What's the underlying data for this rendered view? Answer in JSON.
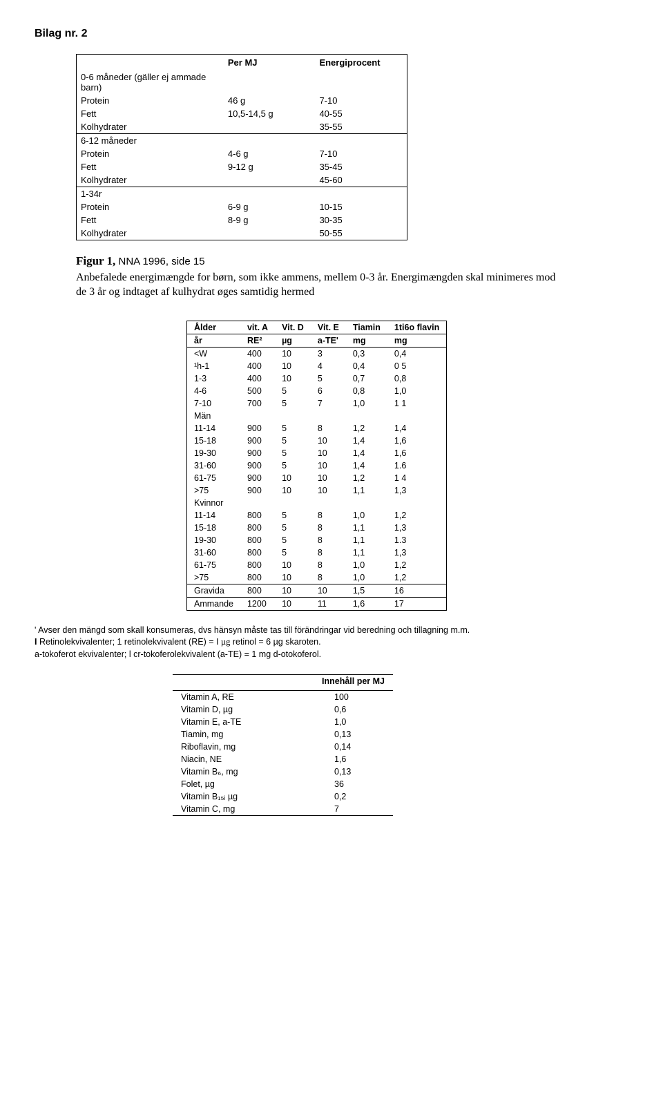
{
  "title": "Bilag nr. 2",
  "table1": {
    "headers": [
      "",
      "Per MJ",
      "Energiprocent"
    ],
    "groups": [
      {
        "rows": [
          [
            "0-6 måneder (gäller ej ammade barn)",
            "",
            ""
          ],
          [
            "Protein",
            "46 g",
            "7-10"
          ],
          [
            "Fett",
            "10,5-14,5 g",
            "40-55"
          ],
          [
            "Kolhydrater",
            "",
            "35-55"
          ]
        ]
      },
      {
        "rows": [
          [
            "6-12 måneder",
            "",
            ""
          ],
          [
            "Protein",
            "4-6 g",
            "7-10"
          ],
          [
            "Fett",
            "9-12 g",
            "35-45"
          ],
          [
            "Kolhydrater",
            "",
            "45-60"
          ]
        ]
      },
      {
        "rows": [
          [
            "1-34r",
            "",
            ""
          ],
          [
            "Protein",
            "6-9 g",
            "10-15"
          ],
          [
            "Fett",
            "8-9 g",
            "30-35"
          ],
          [
            "Kolhydrater",
            "",
            "50-55"
          ]
        ]
      }
    ]
  },
  "figcaption_bold": "Figur 1,",
  "figcaption_rest": " NNA 1996, side 15",
  "figdesc": "Anbefalede energimængde for børn, som ikke ammens, mellem 0-3 år. Energimængden skal minimeres mod de 3 år og indtaget af kulhydrat øges samtidig hermed",
  "table2": {
    "header1": [
      "Ålder",
      "vit. A",
      "Vit. D",
      "Vit. E",
      "Tiamin",
      "1ti6o flavin"
    ],
    "header2": [
      "år",
      "RE²",
      "µg",
      "a-TE'",
      "mg",
      "mg"
    ],
    "rows": [
      [
        "<W",
        "400",
        "10",
        "3",
        "0,3",
        "0,4"
      ],
      [
        "¹h-1",
        "400",
        "10",
        "4",
        "0,4",
        "0 5"
      ],
      [
        "1-3",
        "400",
        "10",
        "5",
        "0,7",
        "0,8"
      ],
      [
        "4-6",
        "500",
        "5",
        "6",
        "0,8",
        "1,0"
      ],
      [
        "7-10",
        "700",
        "5",
        "7",
        "1,0",
        "1 1"
      ],
      [
        "Män",
        "",
        "",
        "",
        "",
        ""
      ],
      [
        "11-14",
        "900",
        "5",
        "8",
        "1,2",
        "1,4"
      ],
      [
        "15-18",
        "900",
        "5",
        "10",
        "1,4",
        "1,6"
      ],
      [
        "19-30",
        "900",
        "5",
        "10",
        "1,4",
        "1,6"
      ],
      [
        "31-60",
        "900",
        "5",
        "10",
        "1,4",
        "1.6"
      ],
      [
        "61-75",
        "900",
        "10",
        "10",
        "1,2",
        "1 4"
      ],
      [
        ">75",
        "900",
        "10",
        "10",
        "1,1",
        "1,3"
      ],
      [
        "Kvinnor",
        "",
        "",
        "",
        "",
        ""
      ],
      [
        "11-14",
        "800",
        "5",
        "8",
        "1,0",
        "1,2"
      ],
      [
        "15-18",
        "800",
        "5",
        "8",
        "1,1",
        "1,3"
      ],
      [
        "19-30",
        "800",
        "5",
        "8",
        "1,1",
        "1.3"
      ],
      [
        "31-60",
        "800",
        "5",
        "8",
        "1,1",
        "1,3"
      ],
      [
        "61-75",
        "800",
        "10",
        "8",
        "1,0",
        "1,2"
      ],
      [
        ">75",
        "800",
        "10",
        "8",
        "1,0",
        "1,2"
      ]
    ],
    "gravida": [
      "Gravida",
      "800",
      "10",
      "10",
      "1,5",
      "16"
    ],
    "ammande": [
      "Ammande",
      "1200",
      "10",
      "11",
      "1,6",
      "17"
    ]
  },
  "footnotes": {
    "l1": "' Avser den mängd som skall konsumeras, dvs hänsyn måste tas till förändringar vid beredning och tillagning m.m.",
    "l2a": "I",
    "l2b": " Retinolekvivalenter; 1 retinolekvivalent (RE) = I ",
    "l2c": "µg",
    "l2d": " retinol = 6 µg skaroten.",
    "l3": "a-tokoferot ekvivalenter; l cr-tokoferolekvivalent (a-TE) = 1 mg d-otokoferol."
  },
  "table3": {
    "header": [
      "",
      "Innehåll per MJ"
    ],
    "rows": [
      [
        "Vitamin A, RE",
        "100"
      ],
      [
        "Vitamin D, µg",
        "0,6"
      ],
      [
        "Vitamin E, a-TE",
        "1,0"
      ],
      [
        "Tiamin, mg",
        "0,13"
      ],
      [
        "Riboflavin, mg",
        "0,14"
      ],
      [
        "Niacin, NE",
        "1,6"
      ],
      [
        "Vitamin B₆, mg",
        "0,13"
      ],
      [
        "Folet, µg",
        "36"
      ],
      [
        "Vitamin B₁₅ᵢ µg",
        "0,2"
      ],
      [
        "Vitamin C, mg",
        "7"
      ]
    ]
  }
}
